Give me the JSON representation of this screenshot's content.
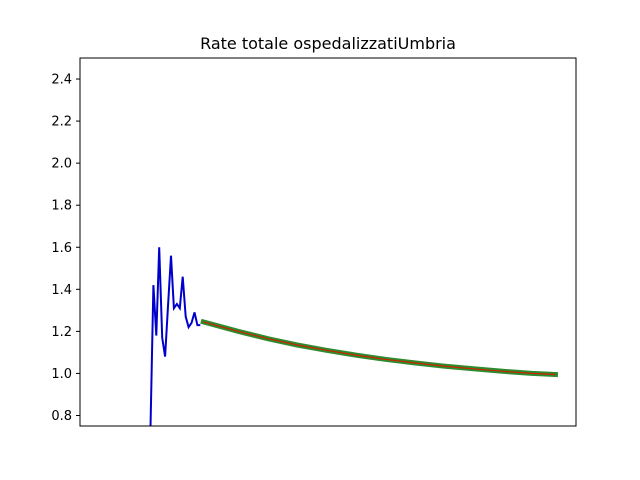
{
  "chart_data": {
    "type": "line",
    "title": "Rate totale ospedalizzatiUmbria",
    "xlabel": "",
    "ylabel": "",
    "ylim": [
      0.75,
      2.5
    ],
    "y_ticks": [
      "0.8",
      "1.0",
      "1.2",
      "1.4",
      "1.6",
      "1.8",
      "2.0",
      "2.2",
      "2.4"
    ],
    "x_ticks_visible": false,
    "grid": false,
    "colors": {
      "observed": "#0000cc",
      "forecast_outer": "#2e8b2e",
      "forecast_inner": "#cc2200"
    },
    "series": [
      {
        "kind": "observed",
        "x": [
          0,
          1,
          2,
          3,
          4,
          5,
          6,
          7,
          8,
          9,
          10,
          11,
          12,
          13,
          14,
          15,
          16,
          17
        ],
        "y": [
          0.72,
          1.42,
          1.18,
          1.6,
          1.17,
          1.08,
          1.32,
          1.56,
          1.31,
          1.33,
          1.31,
          1.46,
          1.27,
          1.22,
          1.24,
          1.29,
          1.23,
          1.23
        ]
      },
      {
        "kind": "forecast",
        "x": [
          18,
          30,
          40,
          50,
          60,
          70,
          80,
          90,
          100,
          110,
          120,
          130,
          138
        ],
        "y": [
          1.245,
          1.2,
          1.165,
          1.135,
          1.11,
          1.087,
          1.067,
          1.05,
          1.035,
          1.022,
          1.01,
          1.0,
          0.995
        ]
      }
    ]
  }
}
